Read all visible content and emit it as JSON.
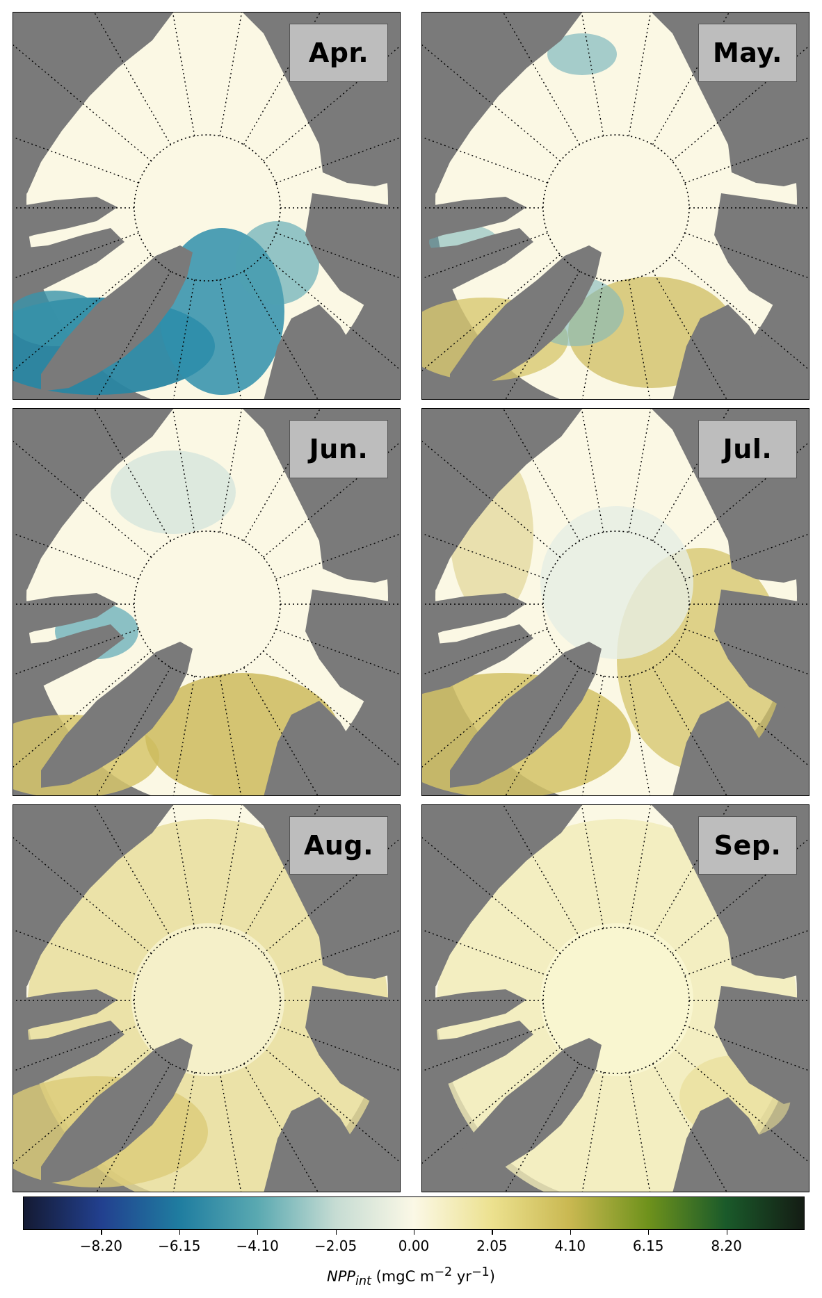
{
  "panels": [
    {
      "label": "Apr.",
      "pattern": "apr"
    },
    {
      "label": "May.",
      "pattern": "may"
    },
    {
      "label": "Jun.",
      "pattern": "jun"
    },
    {
      "label": "Jul.",
      "pattern": "jul"
    },
    {
      "label": "Aug.",
      "pattern": "aug"
    },
    {
      "label": "Sep.",
      "pattern": "sep"
    }
  ],
  "colorbar": {
    "ticks": [
      "−8.20",
      "−6.15",
      "−4.10",
      "−2.05",
      "0.00",
      "2.05",
      "4.10",
      "6.15",
      "8.20"
    ],
    "tick_values": [
      -8.2,
      -6.15,
      -4.1,
      -2.05,
      0,
      2.05,
      4.1,
      6.15,
      8.2
    ],
    "range": [
      -10.25,
      10.25
    ],
    "label_main": "NPP",
    "label_sub": "int",
    "label_units": "(mgC m",
    "label_exp1": "−2",
    "label_units2": " yr",
    "label_exp2": "−1",
    "label_close": ")",
    "colors": [
      "#141a33",
      "#22408f",
      "#1f7da0",
      "#5aa9b1",
      "#c6dcd3",
      "#fbf8e6",
      "#ece18f",
      "#c9b851",
      "#6f921c",
      "#1a5a2a",
      "#141c14"
    ]
  },
  "map_colors": {
    "land": "#7a7a7a",
    "ice": "#fbf8e4",
    "negative": "#2e8ba4",
    "positive": "#d8c870"
  }
}
